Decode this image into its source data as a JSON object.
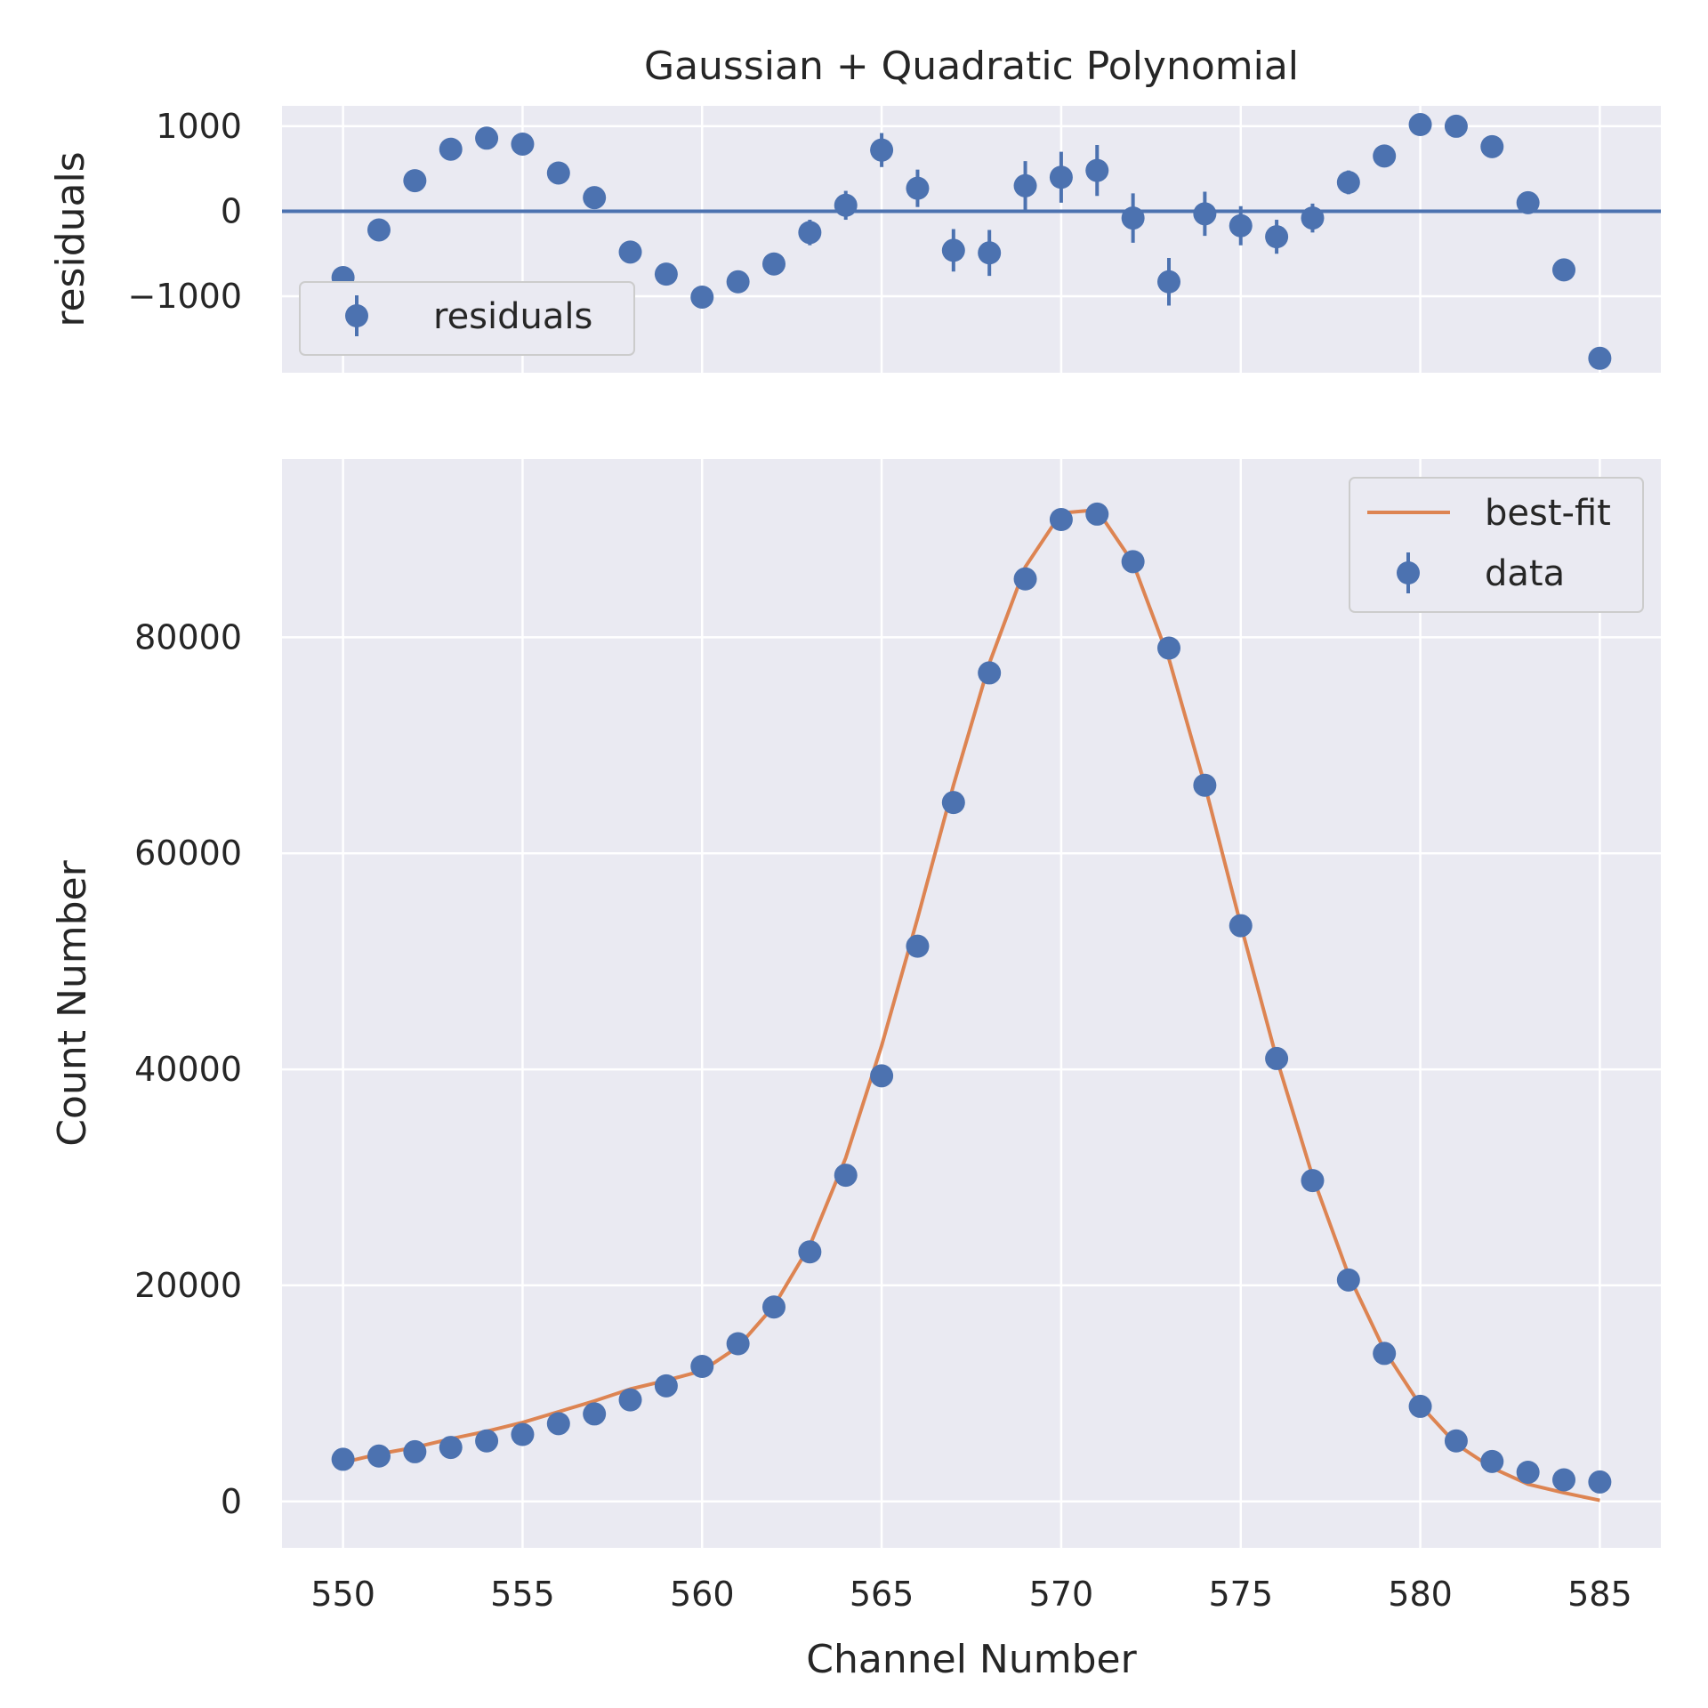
{
  "chart_data": [
    {
      "type": "scatter",
      "panel": "residuals",
      "title": "Gaussian + Quadratic Polynomial",
      "xlabel": "",
      "ylabel": "residuals",
      "xlim": [
        548.3,
        586.7
      ],
      "ylim": [
        -1900,
        1240
      ],
      "x_ticks": [
        550,
        555,
        560,
        565,
        570,
        575,
        580,
        585
      ],
      "y_ticks": [
        -1000,
        0,
        1000
      ],
      "y_tick_labels": [
        "−1000",
        "0",
        "1000"
      ],
      "grid": true,
      "legend_position": "lower-left",
      "reference_line": 0,
      "series": [
        {
          "name": "residuals",
          "color": "#4c72b0",
          "x": [
            550,
            551,
            552,
            553,
            554,
            555,
            556,
            557,
            558,
            559,
            560,
            561,
            562,
            563,
            564,
            565,
            566,
            567,
            568,
            569,
            570,
            571,
            572,
            573,
            574,
            575,
            576,
            577,
            578,
            579,
            580,
            581,
            582,
            583,
            584,
            585
          ],
          "y": [
            -780,
            -220,
            360,
            730,
            860,
            790,
            450,
            160,
            -480,
            -740,
            -1010,
            -830,
            -620,
            -250,
            70,
            720,
            270,
            -460,
            -490,
            300,
            400,
            480,
            -80,
            -830,
            -30,
            -170,
            -300,
            -80,
            340,
            650,
            1020,
            1000,
            760,
            100,
            -690,
            -1730
          ],
          "yerr": [
            60,
            60,
            70,
            80,
            90,
            90,
            90,
            100,
            100,
            100,
            110,
            120,
            130,
            150,
            170,
            200,
            220,
            250,
            270,
            290,
            300,
            300,
            290,
            280,
            260,
            230,
            200,
            170,
            140,
            120,
            100,
            90,
            80,
            70,
            60,
            60
          ]
        }
      ]
    },
    {
      "type": "line",
      "panel": "main",
      "title": "",
      "xlabel": "Channel Number",
      "ylabel": "Count Number",
      "xlim": [
        548.3,
        586.7
      ],
      "ylim": [
        -4300,
        96500
      ],
      "x_ticks": [
        550,
        555,
        560,
        565,
        570,
        575,
        580,
        585
      ],
      "x_tick_labels": [
        "550",
        "555",
        "560",
        "565",
        "570",
        "575",
        "580",
        "585"
      ],
      "y_ticks": [
        0,
        20000,
        40000,
        60000,
        80000
      ],
      "y_tick_labels": [
        "0",
        "20000",
        "40000",
        "60000",
        "80000"
      ],
      "grid": true,
      "legend_position": "upper-right",
      "series": [
        {
          "name": "best-fit",
          "kind": "line",
          "color": "#dd8452",
          "x": [
            550,
            551,
            552,
            553,
            554,
            555,
            556,
            557,
            558,
            559,
            560,
            561,
            562,
            563,
            564,
            565,
            566,
            567,
            568,
            569,
            570,
            571,
            572,
            573,
            574,
            575,
            576,
            577,
            578,
            579,
            580,
            581,
            582,
            583,
            584,
            585
          ],
          "y": [
            3600,
            4400,
            5000,
            5800,
            6500,
            7300,
            8300,
            9300,
            10400,
            11200,
            12100,
            14300,
            18100,
            23700,
            31800,
            42200,
            54000,
            66300,
            77600,
            86500,
            91500,
            91800,
            86900,
            78000,
            66300,
            53400,
            41000,
            30100,
            21000,
            14000,
            8900,
            5300,
            3100,
            1600,
            800,
            100
          ]
        },
        {
          "name": "data",
          "kind": "scatter",
          "color": "#4c72b0",
          "x": [
            550,
            551,
            552,
            553,
            554,
            555,
            556,
            557,
            558,
            559,
            560,
            561,
            562,
            563,
            564,
            565,
            566,
            567,
            568,
            569,
            570,
            571,
            572,
            573,
            574,
            575,
            576,
            577,
            578,
            579,
            580,
            581,
            582,
            583,
            584,
            585
          ],
          "y": [
            3900,
            4200,
            4600,
            5000,
            5600,
            6200,
            7200,
            8100,
            9400,
            10700,
            12500,
            14600,
            18000,
            23100,
            30200,
            39400,
            51400,
            64700,
            76700,
            85400,
            90900,
            91400,
            87000,
            79000,
            66300,
            53300,
            41000,
            29700,
            20500,
            13700,
            8800,
            5600,
            3700,
            2700,
            2000,
            1800
          ],
          "yerr": [
            60,
            60,
            70,
            80,
            90,
            90,
            90,
            100,
            100,
            100,
            110,
            120,
            130,
            150,
            170,
            200,
            220,
            250,
            270,
            290,
            300,
            300,
            290,
            280,
            260,
            230,
            200,
            170,
            140,
            120,
            100,
            90,
            80,
            70,
            60,
            60
          ]
        }
      ]
    }
  ]
}
